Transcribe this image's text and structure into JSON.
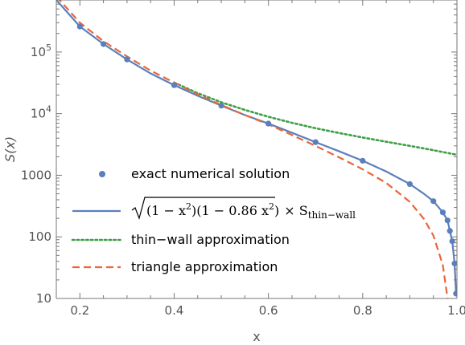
{
  "chart_data": {
    "type": "line",
    "xlabel": "x",
    "ylabel": "S(x)",
    "xlim": [
      0.15,
      1.0
    ],
    "ylim": [
      10,
      700000
    ],
    "y_scale": "log",
    "x_ticks": [
      {
        "value": 0.2,
        "label": "0.2"
      },
      {
        "value": 0.4,
        "label": "0.4"
      },
      {
        "value": 0.6,
        "label": "0.6"
      },
      {
        "value": 0.8,
        "label": "0.8"
      },
      {
        "value": 1.0,
        "label": "1.0"
      }
    ],
    "y_ticks": [
      {
        "value": 10,
        "label": "10"
      },
      {
        "value": 100,
        "label": "100"
      },
      {
        "value": 1000,
        "label": "1000"
      },
      {
        "value": 10000,
        "label": "10",
        "exp": "4"
      },
      {
        "value": 100000,
        "label": "10",
        "exp": "5"
      }
    ],
    "grid": false,
    "legend_position": "lower-left",
    "series": [
      {
        "name": "exact numerical solution",
        "style": "markers",
        "color": "#5b7fbd",
        "x": [
          0.2,
          0.25,
          0.3,
          0.4,
          0.5,
          0.6,
          0.7,
          0.8,
          0.9,
          0.95,
          0.97,
          0.98,
          0.985,
          0.99,
          0.995,
          0.998
        ],
        "y": [
          260000,
          135000,
          76000,
          29000,
          13500,
          6900,
          3450,
          1720,
          720,
          380,
          250,
          185,
          125,
          85,
          37,
          12
        ]
      },
      {
        "name": "√((1 − x²)(1 − 0.86 x²)) × S_thin−wall",
        "name_parts": {
          "inner": "(1 − x",
          "sup1": "2",
          "mid": ")(1 − 0.86 x",
          "sup2": "2",
          "close": ")",
          "times": "× S",
          "sub": "thin−wall"
        },
        "style": "solid",
        "color": "#5b7fbd",
        "x": [
          0.15,
          0.2,
          0.25,
          0.3,
          0.35,
          0.4,
          0.45,
          0.5,
          0.55,
          0.6,
          0.65,
          0.7,
          0.75,
          0.8,
          0.85,
          0.9,
          0.93,
          0.95,
          0.97,
          0.98,
          0.985,
          0.99,
          0.995,
          0.998
        ],
        "y": [
          700000,
          260000,
          135000,
          76000,
          45000,
          29000,
          19500,
          13500,
          9500,
          6900,
          4900,
          3450,
          2450,
          1720,
          1150,
          720,
          500,
          380,
          250,
          185,
          125,
          85,
          37,
          12
        ]
      },
      {
        "name": "thin−wall approximation",
        "style": "dotted",
        "color": "#3f9f46",
        "x": [
          0.4,
          0.45,
          0.5,
          0.55,
          0.6,
          0.65,
          0.7,
          0.75,
          0.8,
          0.85,
          0.9,
          0.95,
          1.0
        ],
        "y": [
          32000,
          21500,
          15300,
          11500,
          8900,
          7100,
          5800,
          4850,
          4100,
          3500,
          3000,
          2550,
          2150
        ]
      },
      {
        "name": "triangle approximation",
        "style": "dashed",
        "color": "#e8663a",
        "x": [
          0.15,
          0.2,
          0.25,
          0.3,
          0.35,
          0.4,
          0.45,
          0.5,
          0.55,
          0.6,
          0.65,
          0.7,
          0.75,
          0.8,
          0.85,
          0.9,
          0.93,
          0.95,
          0.97,
          0.98
        ],
        "y": [
          800000,
          300000,
          150000,
          85000,
          50000,
          32000,
          20500,
          13800,
          9500,
          6700,
          4500,
          3000,
          1950,
          1250,
          750,
          370,
          195,
          105,
          35,
          10
        ]
      }
    ]
  }
}
